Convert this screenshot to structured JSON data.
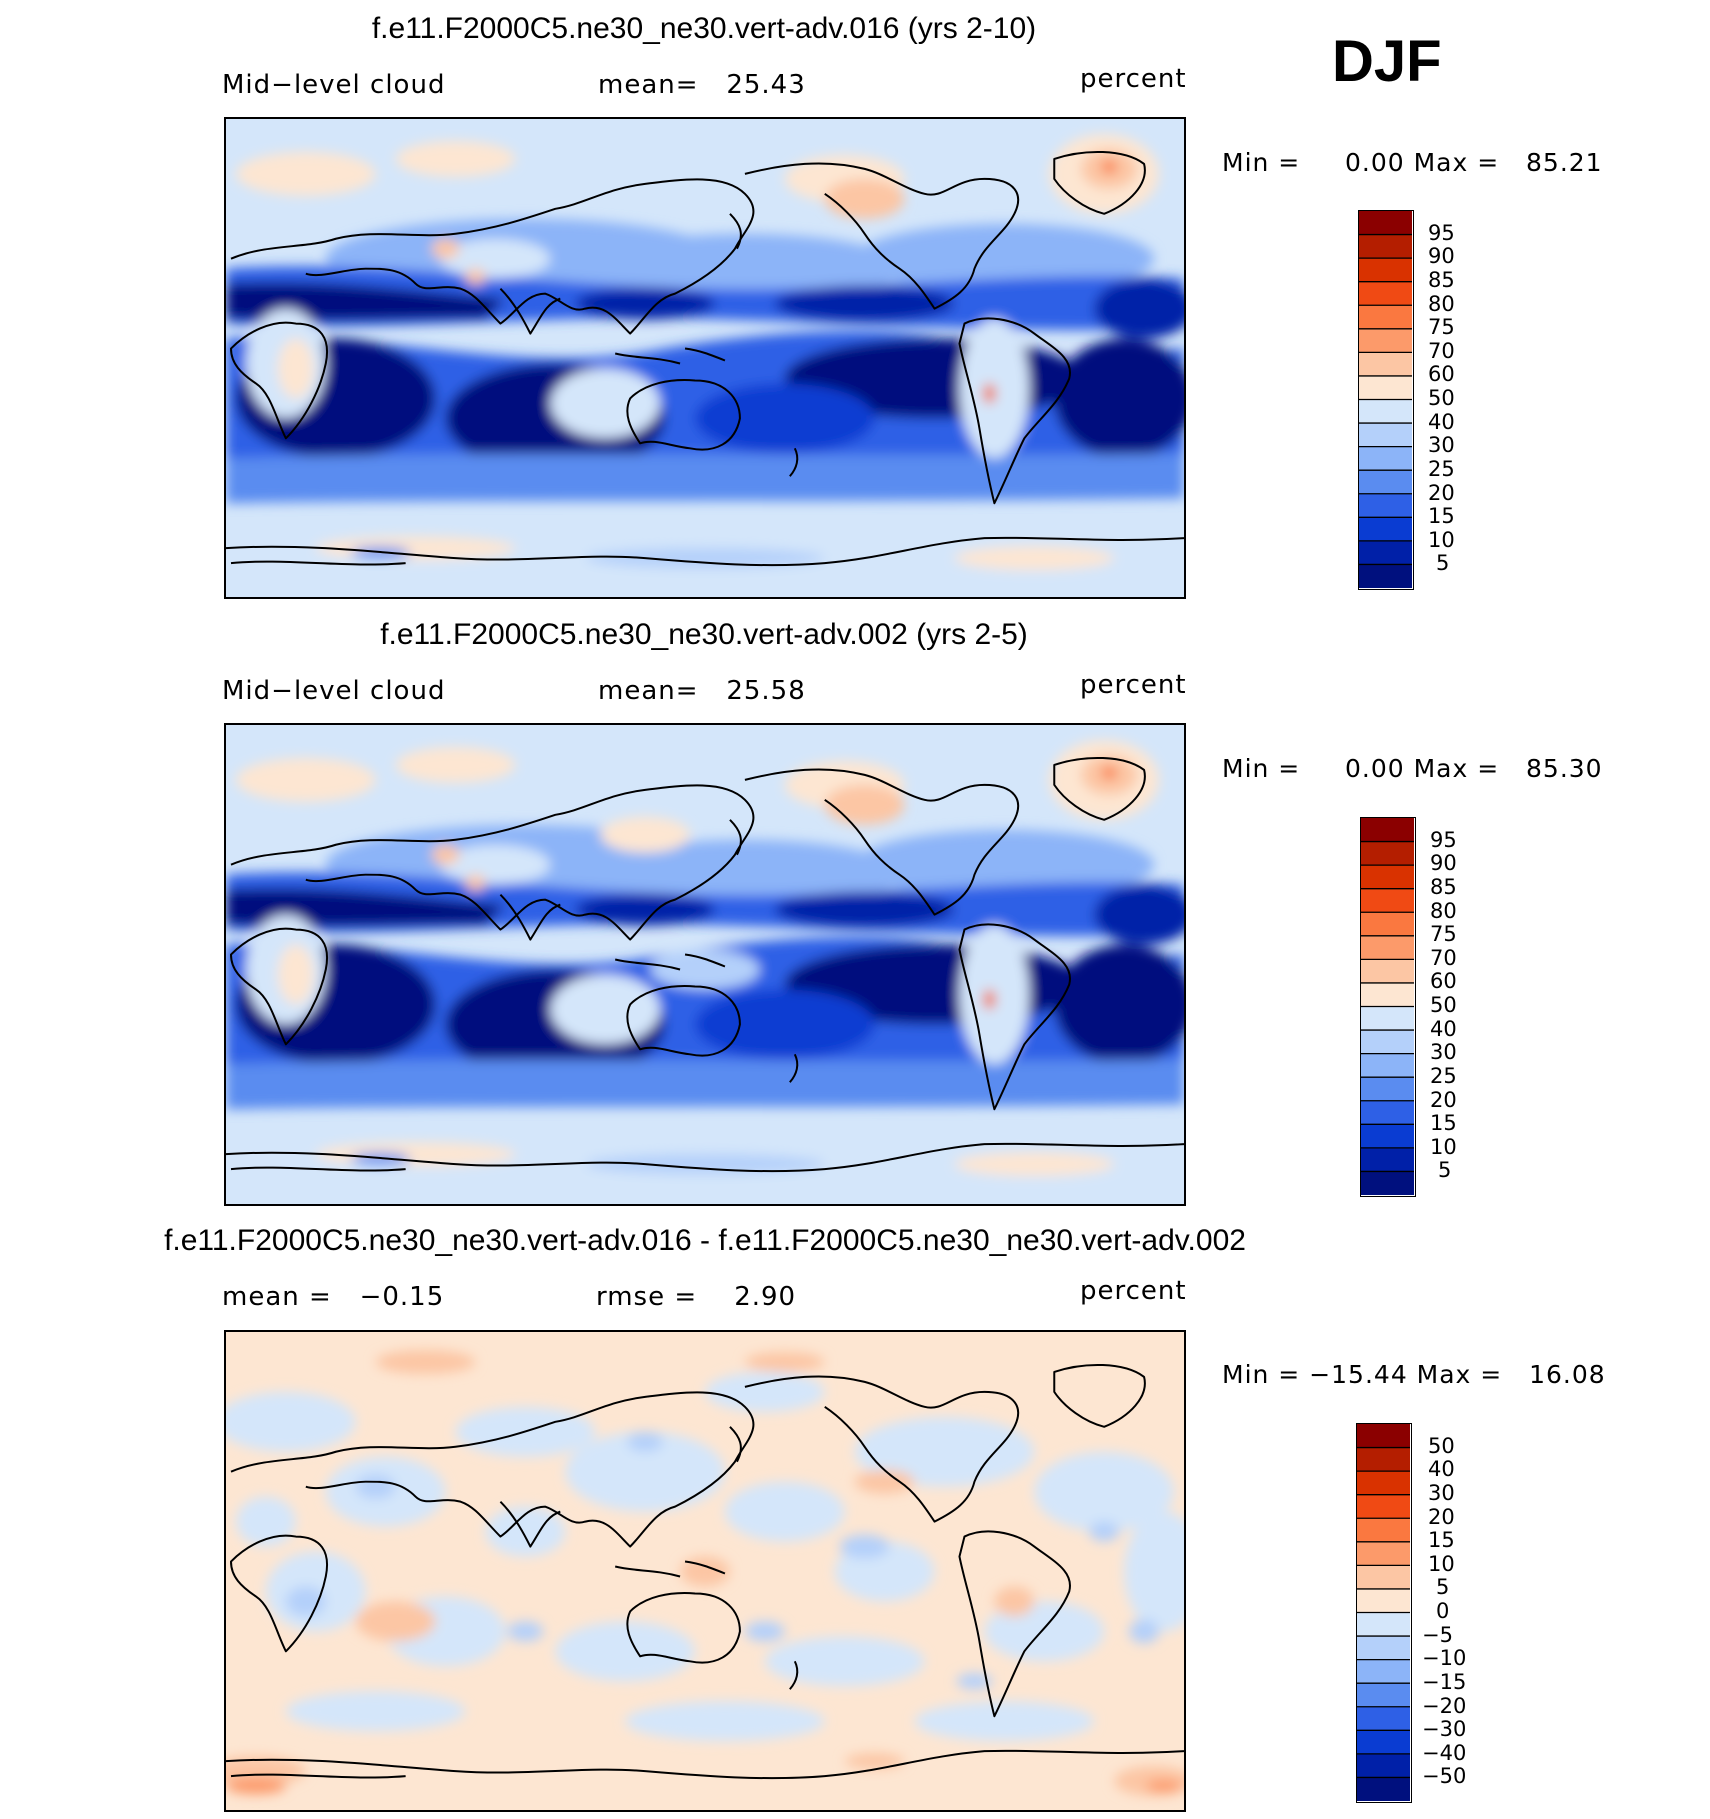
{
  "season": "DJF",
  "panels": [
    {
      "title": "f.e11.F2000C5.ne30_ne30.vert-adv.016 (yrs 2-10)",
      "left_label": "Mid−level cloud",
      "center_label": "mean=   25.43",
      "units": "percent",
      "minmax": "Min =     0.00 Max =   85.21",
      "levels": [
        "95",
        "90",
        "85",
        "80",
        "75",
        "70",
        "60",
        "50",
        "40",
        "30",
        "25",
        "20",
        "15",
        "10",
        "5"
      ],
      "colors": [
        "#8b0000",
        "#b41e00",
        "#d93200",
        "#f04a14",
        "#fa7840",
        "#fc9a6a",
        "#fcc6a4",
        "#fde6d2",
        "#d4e6fa",
        "#b4d0fa",
        "#8cb4f8",
        "#5a8cf0",
        "#2e60e6",
        "#0a3cd2",
        "#0020a8",
        "#00107e"
      ],
      "scene": "mean"
    },
    {
      "title": "f.e11.F2000C5.ne30_ne30.vert-adv.002 (yrs 2-5)",
      "left_label": "Mid−level cloud",
      "center_label": "mean=   25.58",
      "units": "percent",
      "minmax": "Min =     0.00 Max =   85.30",
      "levels": [
        "95",
        "90",
        "85",
        "80",
        "75",
        "70",
        "60",
        "50",
        "40",
        "30",
        "25",
        "20",
        "15",
        "10",
        "5"
      ],
      "colors": [
        "#8b0000",
        "#b41e00",
        "#d93200",
        "#f04a14",
        "#fa7840",
        "#fc9a6a",
        "#fcc6a4",
        "#fde6d2",
        "#d4e6fa",
        "#b4d0fa",
        "#8cb4f8",
        "#5a8cf0",
        "#2e60e6",
        "#0a3cd2",
        "#0020a8",
        "#00107e"
      ],
      "scene": "mean"
    },
    {
      "title": "f.e11.F2000C5.ne30_ne30.vert-adv.016 - f.e11.F2000C5.ne30_ne30.vert-adv.002",
      "left_label": "mean =   −0.15",
      "center_label": "rmse =    2.90",
      "units": "percent",
      "minmax": "Min = −15.44 Max =   16.08",
      "levels": [
        "50",
        "40",
        "30",
        "20",
        "15",
        "10",
        "5",
        "0",
        "−5",
        "−10",
        "−15",
        "−20",
        "−30",
        "−40",
        "−50"
      ],
      "colors": [
        "#8b0000",
        "#b41e00",
        "#d93200",
        "#f04a14",
        "#fa7840",
        "#fc9a6a",
        "#fcc6a4",
        "#fde6d2",
        "#d4e6fa",
        "#b4d0fa",
        "#8cb4f8",
        "#5a8cf0",
        "#2e60e6",
        "#0a3cd2",
        "#0020a8",
        "#00107e"
      ],
      "scene": "diff"
    }
  ]
}
